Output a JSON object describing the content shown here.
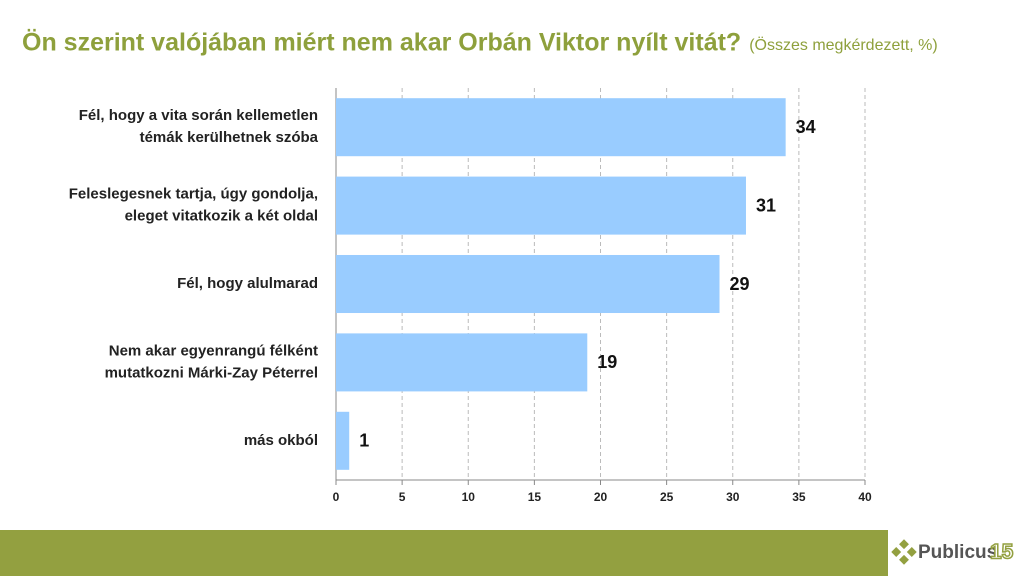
{
  "chart_data": {
    "type": "bar",
    "orientation": "horizontal",
    "title": "Ön szerint valójában miért nem akar Orbán Viktor nyílt vitát?",
    "subtitle": "(Összes megkérdezett, %)",
    "categories": [
      [
        "Fél, hogy a vita során kellemetlen",
        "témák kerülhetnek szóba"
      ],
      [
        "Feleslegesnek tartja, úgy gondolja,",
        "eleget vitatkozik a két oldal"
      ],
      [
        "Fél, hogy alulmarad"
      ],
      [
        "Nem akar egyenrangú félként",
        "mutatkozni Márki-Zay Péterrel"
      ],
      [
        "más okból"
      ]
    ],
    "values": [
      34,
      31,
      29,
      19,
      1
    ],
    "color": "#99ccff",
    "xlim": [
      0,
      40
    ],
    "xticks": [
      0,
      5,
      10,
      15,
      20,
      25,
      30,
      35,
      40
    ],
    "grid": true
  },
  "logo": {
    "name": "Publicus",
    "number": "15"
  }
}
